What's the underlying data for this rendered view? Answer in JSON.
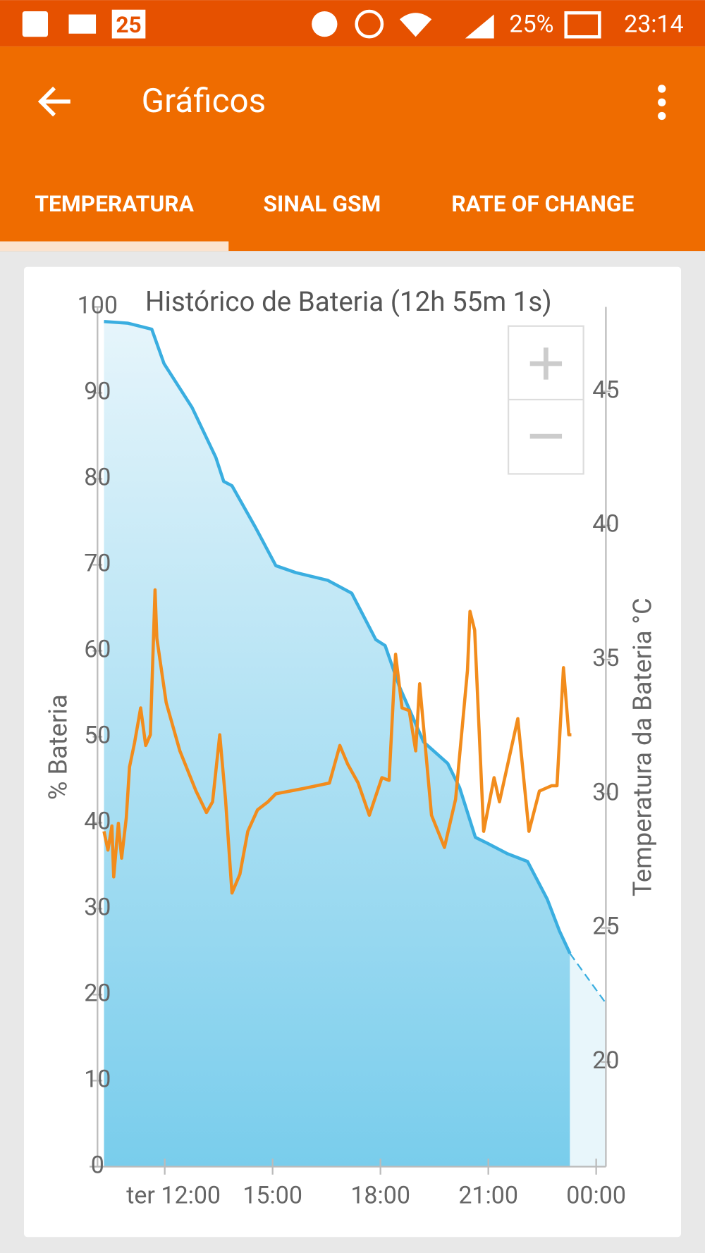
{
  "status_bar": {
    "calendar_day": "25",
    "battery": "25%",
    "time": "23:14"
  },
  "app_bar": {
    "title": "Gráficos"
  },
  "tabs": [
    "TEMPERATURA",
    "SINAL GSM",
    "RATE OF CHANGE"
  ],
  "chart_data": {
    "type": "line",
    "title": "Histórico de Bateria (12h 55m 1s)",
    "y_label": "% Bateria",
    "y2_label": "Temperatura da Bateria °C",
    "xlim": [
      10.13,
      24.27
    ],
    "xticks": [
      {
        "value": 12,
        "label": "ter 12:00"
      },
      {
        "value": 15,
        "label": "15:00"
      },
      {
        "value": 18,
        "label": "18:00"
      },
      {
        "value": 21,
        "label": "21:00"
      },
      {
        "value": 24,
        "label": "00:00"
      }
    ],
    "ylim": [
      0,
      100
    ],
    "yticks": [
      0,
      10,
      20,
      30,
      40,
      50,
      60,
      70,
      80,
      90,
      100
    ],
    "y2lim": [
      16.1,
      48.15
    ],
    "y2ticks": [
      20,
      25,
      30,
      35,
      40,
      45
    ],
    "series": [
      {
        "color": "#3aaee0",
        "area": true,
        "x": [
          10.31,
          10.98,
          11.64,
          11.98,
          12.76,
          13.42,
          13.64,
          13.87,
          14.53,
          15.09,
          15.64,
          16.53,
          17.2,
          17.87,
          18.13,
          18.53,
          19.2,
          19.87,
          20.2,
          20.64,
          20.98,
          21.53,
          22.09,
          22.64,
          22.98,
          23.27
        ],
        "values": [
          98.3,
          98.1,
          97.4,
          93.4,
          88.3,
          82.5,
          79.7,
          79.2,
          74.3,
          69.9,
          69.1,
          68.2,
          66.7,
          61.3,
          60.6,
          55.8,
          49.4,
          46.9,
          44.1,
          38.3,
          37.6,
          36.4,
          35.5,
          31.1,
          27.4,
          24.8
        ]
      },
      {
        "color": "#3aaee0",
        "dashed": true,
        "x": [
          23.27,
          24.27
        ],
        "values": [
          24.8,
          19.0
        ]
      },
      {
        "color": "#f28c1c",
        "axis": "y2",
        "x": [
          10.31,
          10.42,
          10.53,
          10.58,
          10.71,
          10.8,
          10.93,
          11.02,
          11.16,
          11.33,
          11.47,
          11.6,
          11.73,
          11.78,
          12.04,
          12.42,
          12.87,
          13.16,
          13.33,
          13.53,
          13.69,
          13.87,
          14.09,
          14.31,
          14.58,
          14.87,
          15.09,
          15.87,
          16.58,
          16.87,
          17.09,
          17.38,
          17.69,
          18.04,
          18.24,
          18.42,
          18.6,
          18.8,
          18.98,
          19.09,
          19.42,
          19.78,
          20.09,
          20.42,
          20.49,
          20.62,
          20.87,
          21.16,
          21.31,
          21.82,
          22.13,
          22.42,
          22.76,
          22.91,
          23.09,
          23.24,
          23.31
        ],
        "values": [
          28.6,
          27.9,
          28.8,
          26.9,
          28.9,
          27.6,
          29.1,
          31.0,
          31.9,
          33.2,
          31.8,
          32.2,
          37.6,
          35.8,
          33.4,
          31.6,
          30.1,
          29.3,
          29.7,
          32.2,
          29.8,
          26.3,
          27.0,
          28.6,
          29.4,
          29.7,
          30.0,
          30.2,
          30.4,
          31.8,
          31.1,
          30.4,
          29.2,
          30.6,
          30.5,
          35.2,
          33.2,
          33.1,
          31.6,
          34.1,
          29.2,
          28.0,
          29.8,
          34.6,
          36.8,
          36.1,
          28.6,
          30.6,
          29.7,
          32.8,
          28.6,
          30.1,
          30.3,
          30.3,
          34.7,
          32.2,
          32.2
        ]
      }
    ]
  }
}
